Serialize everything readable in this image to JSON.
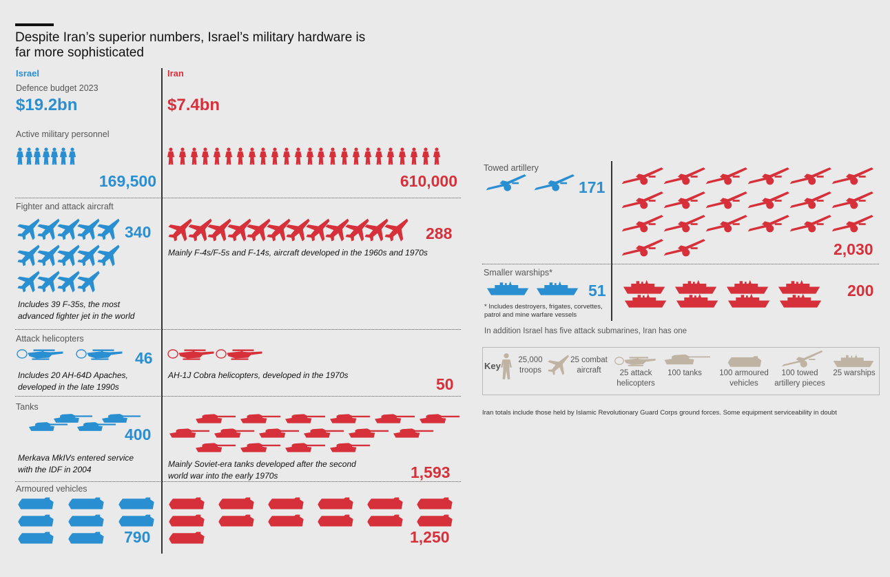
{
  "title": "Despite Iran’s superior numbers, Israel’s military hardware is far more sophisticated",
  "columns": {
    "israel": "Israel",
    "iran": "Iran"
  },
  "colors": {
    "israel": "#2a8fd0",
    "iran": "#d6303a",
    "key": "#bfb3a3",
    "background": "#eaeaeb"
  },
  "budget": {
    "label": "Defence budget 2023",
    "israel": "$19.2bn",
    "iran": "$7.4bn"
  },
  "sections": {
    "personnel": {
      "label": "Active military personnel",
      "israel": "169,500",
      "iran": "610,000"
    },
    "aircraft": {
      "label": "Fighter and attack aircraft",
      "israel": "340",
      "iran": "288",
      "israel_note": "Includes 39 F-35s, the most advanced fighter jet in the world",
      "iran_note": "Mainly F-4s/F-5s and F-14s, aircraft developed in the 1960s and 1970s"
    },
    "helicopters": {
      "label": "Attack helicopters",
      "israel": "46",
      "iran": "50",
      "israel_note": "Includes 20 AH-64D Apaches, developed in the late 1990s",
      "iran_note": "AH-1J Cobra helicopters, developed in the 1970s"
    },
    "tanks": {
      "label": "Tanks",
      "israel": "400",
      "iran": "1,593",
      "israel_note": "Merkava MkIVs entered service with the IDF in 2004",
      "iran_note": "Mainly Soviet-era tanks developed after the second world war into the early 1970s"
    },
    "armoured": {
      "label": "Armoured vehicles",
      "israel": "790",
      "iran": "1,250"
    },
    "artillery": {
      "label": "Towed artillery",
      "israel": "171",
      "iran": "2,030"
    },
    "warships": {
      "label": "Smaller warships*",
      "israel": "51",
      "iran": "200",
      "footnote": "* Includes destroyers, frigates, corvettes, patrol and mine warfare vessels"
    }
  },
  "submarines_note": "In addition Israel has five attack submarines, Iran has one",
  "key": {
    "title": "Key",
    "troops": "25,000 troops",
    "aircraft": "25 combat aircraft",
    "helicopters": "25 attack helicopters",
    "tanks": "100 tanks",
    "armoured": "100 armoured vehicles",
    "artillery": "100 towed artillery pieces",
    "warships": "25 warships"
  },
  "source_note": "Iran totals include those held by Islamic Revolutionary Guard Corps ground forces. Some equipment serviceability in doubt",
  "chart_data": {
    "type": "table",
    "title": "Despite Iran’s superior numbers, Israel’s military hardware is far more sophisticated",
    "units_per_icon": {
      "troops": 25000,
      "combat aircraft": 25,
      "attack helicopters": 25,
      "tanks": 100,
      "armoured vehicles": 100,
      "towed artillery pieces": 100,
      "warships": 25
    },
    "categories": [
      "Defence budget 2023 ($bn)",
      "Active military personnel",
      "Fighter and attack aircraft",
      "Attack helicopters",
      "Tanks",
      "Armoured vehicles",
      "Towed artillery",
      "Smaller warships"
    ],
    "series": [
      {
        "name": "Israel",
        "values": [
          19.2,
          169500,
          340,
          46,
          400,
          790,
          171,
          51
        ]
      },
      {
        "name": "Iran",
        "values": [
          7.4,
          610000,
          288,
          50,
          1593,
          1250,
          2030,
          200
        ]
      }
    ]
  }
}
